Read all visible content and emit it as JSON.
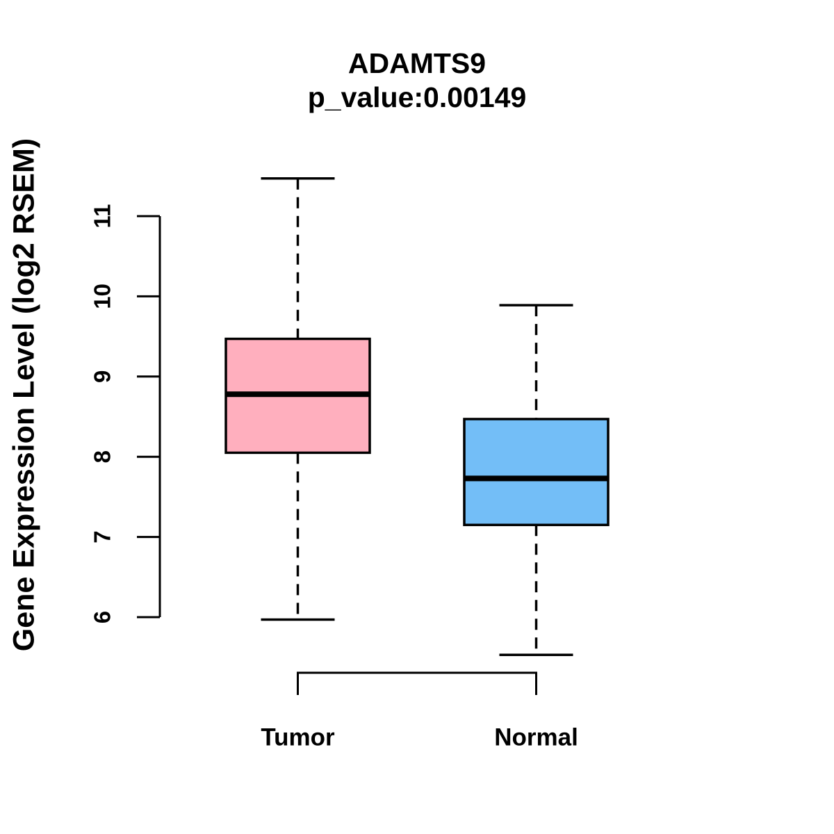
{
  "figure": {
    "background": "#FFFFFF"
  },
  "chart_data": {
    "type": "boxplot",
    "title": "ADAMTS9",
    "subtitle": "p_value:0.00149",
    "gene": "ADAMTS9",
    "p_value": "0.00149",
    "ylabel": "Gene Expression Level (log2 RSEM)",
    "categories": [
      "Tumor",
      "Normal"
    ],
    "y_ticks": [
      6,
      7,
      8,
      9,
      10,
      11
    ],
    "ylim": [
      5.3,
      11.7
    ],
    "grid": false,
    "legend": "none",
    "series": [
      {
        "name": "Tumor",
        "box_color": "#FFAFBE",
        "whisker_low": 5.97,
        "q1": 8.05,
        "median": 8.78,
        "q3": 9.47,
        "whisker_high": 11.47
      },
      {
        "name": "Normal",
        "box_color": "#73BEF7",
        "whisker_low": 5.53,
        "q1": 7.15,
        "median": 7.73,
        "q3": 8.47,
        "whisker_high": 9.89
      }
    ],
    "colors": {
      "axis": "#000000",
      "median": "#000000",
      "box_border": "#000000",
      "text": "#000000"
    }
  }
}
